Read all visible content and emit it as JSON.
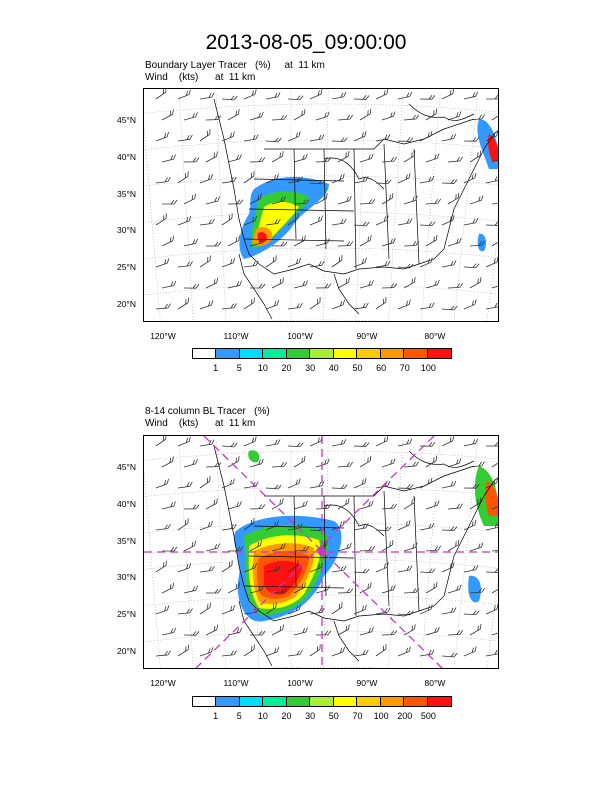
{
  "title": "2013-08-05_09:00:00",
  "panels": [
    {
      "line1": "Boundary Layer Tracer   (%)     at  11 km",
      "line2": "Wind    (kts)      at  11 km",
      "lat_labels": [
        "45°N",
        "40°N",
        "35°N",
        "30°N",
        "25°N",
        "20°N"
      ],
      "lon_labels": [
        "120°W",
        "110°W",
        "100°W",
        "90°W",
        "80°W"
      ],
      "colorbar": {
        "colors": [
          "#ffffff",
          "#3399ff",
          "#00ddff",
          "#00ee99",
          "#33cc33",
          "#aaee33",
          "#ffff00",
          "#ffcc00",
          "#ff9900",
          "#ff5500",
          "#ff1111"
        ],
        "labels": [
          "1",
          "5",
          "10",
          "20",
          "30",
          "40",
          "50",
          "60",
          "70",
          "100"
        ]
      }
    },
    {
      "line1": "8-14 column BL Tracer   (%)",
      "line2": "Wind    (kts)      at  11 km",
      "lat_labels": [
        "45°N",
        "40°N",
        "35°N",
        "30°N",
        "25°N",
        "20°N"
      ],
      "lon_labels": [
        "120°W",
        "110°W",
        "100°W",
        "90°W",
        "80°W"
      ],
      "colorbar": {
        "colors": [
          "#ffffff",
          "#3399ff",
          "#00ddff",
          "#00ee99",
          "#33cc33",
          "#aaee33",
          "#ffff00",
          "#ffcc00",
          "#ff9900",
          "#ff5500",
          "#ff1111"
        ],
        "labels": [
          "1",
          "5",
          "10",
          "20",
          "30",
          "50",
          "70",
          "100",
          "200",
          "500"
        ]
      }
    }
  ],
  "colors": {
    "grid": "#999999",
    "coast": "#000000",
    "barb": "#333333",
    "cross_section": "#cc33cc"
  }
}
